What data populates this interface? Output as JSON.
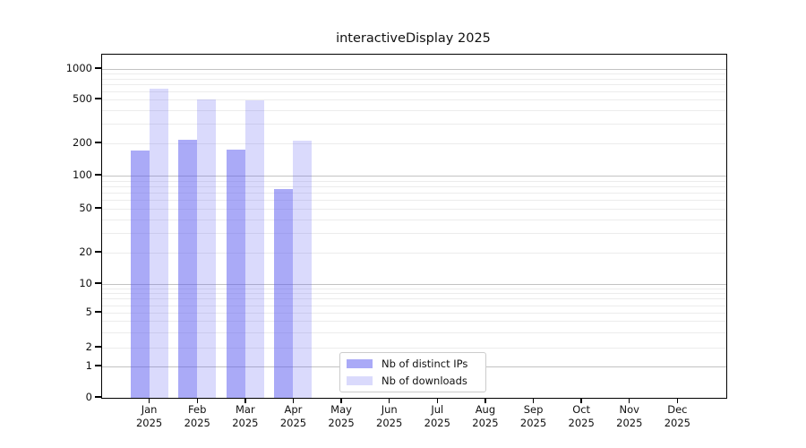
{
  "title": "interactiveDisplay 2025",
  "chart_data": {
    "type": "bar",
    "title": "interactiveDisplay 2025",
    "categories": [
      "Jan",
      "Feb",
      "Mar",
      "Apr",
      "May",
      "Jun",
      "Jul",
      "Aug",
      "Sep",
      "Oct",
      "Nov",
      "Dec"
    ],
    "year_label": "2025",
    "series": [
      {
        "name": "Nb of distinct IPs",
        "values": [
          173,
          215,
          174,
          76,
          0,
          0,
          0,
          0,
          0,
          0,
          0,
          0
        ]
      },
      {
        "name": "Nb of downloads",
        "values": [
          640,
          500,
          490,
          210,
          0,
          0,
          0,
          0,
          0,
          0,
          0,
          0
        ]
      }
    ],
    "y_ticks": [
      1000,
      500,
      200,
      100,
      50,
      20,
      10,
      5,
      2,
      1,
      0
    ],
    "y_scale": "symlog",
    "ylim": [
      0,
      1300
    ],
    "grid": {
      "major": [
        1,
        10,
        100,
        1000
      ],
      "minor": [
        2,
        3,
        4,
        5,
        6,
        7,
        8,
        9,
        20,
        30,
        40,
        50,
        60,
        70,
        80,
        90,
        200,
        300,
        400,
        500,
        600,
        700,
        800,
        900
      ]
    },
    "legend_position": "lower center",
    "colors": {
      "bar_base": "#5555f0",
      "distinct_ips_alpha": 0.5,
      "downloads_alpha": 0.22,
      "grid_major": "#c3c3c3",
      "grid_minor": "#ececec"
    }
  }
}
